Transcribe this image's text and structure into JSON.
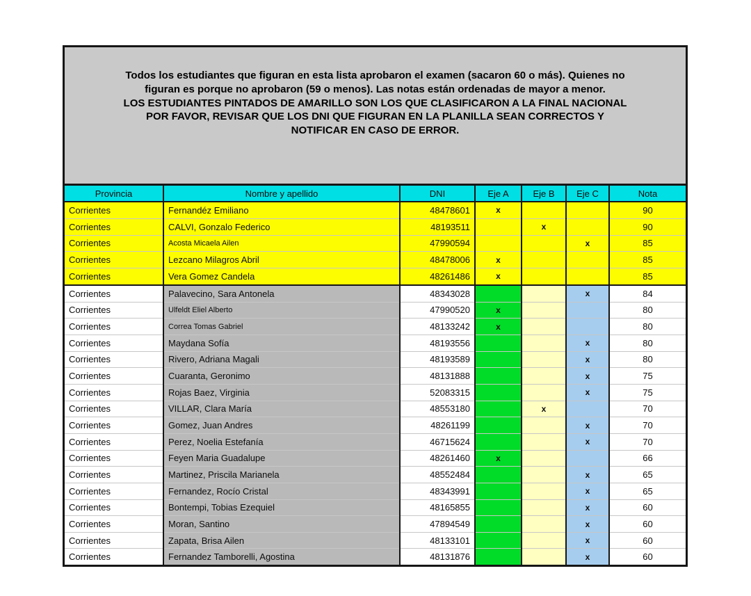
{
  "colors": {
    "notice_bg": "#c9c9c9",
    "header_bg": "#00dfe4",
    "highlight_yellow": "#fdfd00",
    "name_col_gray": "#b9b9b9",
    "eje_a_green": "#00dc28",
    "eje_b_cream": "#ffffc2",
    "eje_c_blue": "#a6cdee",
    "border_black": "#161616"
  },
  "notice": {
    "para1": "Todos los estudiantes que figuran en esta lista aprobaron el examen (sacaron 60 o más). Quienes no figuran es porque no aprobaron (59 o menos). Las notas están ordenadas de mayor a menor.",
    "para2": "LOS ESTUDIANTES PINTADOS DE AMARILLO SON LOS QUE CLASIFICARON A LA FINAL NACIONAL",
    "para3": "POR FAVOR, REVISAR QUE LOS DNI QUE FIGURAN EN LA PLANILLA SEAN CORRECTOS Y NOTIFICAR EN CASO DE ERROR."
  },
  "table": {
    "headers": [
      "Provincia",
      "Nombre y apellido",
      "DNI",
      "Eje A",
      "Eje B",
      "Eje C",
      "Nota"
    ],
    "rows": [
      {
        "provincia": "Corrientes",
        "nombre": "Fernandéz Emiliano",
        "dni": "48478601",
        "eje_a": "x",
        "eje_b": "",
        "eje_c": "",
        "nota": "90",
        "highlight": true,
        "small_name": false
      },
      {
        "provincia": "Corrientes",
        "nombre": "CALVI, Gonzalo Federico",
        "dni": "48193511",
        "eje_a": "",
        "eje_b": "x",
        "eje_c": "",
        "nota": "90",
        "highlight": true,
        "small_name": false
      },
      {
        "provincia": "Corrientes",
        "nombre": "Acosta Micaela Ailen",
        "dni": "47990594",
        "eje_a": "",
        "eje_b": "",
        "eje_c": "x",
        "nota": "85",
        "highlight": true,
        "small_name": true
      },
      {
        "provincia": "Corrientes",
        "nombre": "Lezcano Milagros Abril",
        "dni": "48478006",
        "eje_a": "x",
        "eje_b": "",
        "eje_c": "",
        "nota": "85",
        "highlight": true,
        "small_name": false
      },
      {
        "provincia": "Corrientes",
        "nombre": "Vera Gomez Candela",
        "dni": "48261486",
        "eje_a": "x",
        "eje_b": "",
        "eje_c": "",
        "nota": "85",
        "highlight": true,
        "small_name": false
      },
      {
        "provincia": "Corrientes",
        "nombre": "Palavecino, Sara Antonela",
        "dni": "48343028",
        "eje_a": "",
        "eje_b": "",
        "eje_c": "x",
        "nota": "84",
        "highlight": false,
        "small_name": false
      },
      {
        "provincia": "Corrientes",
        "nombre": "Ulfeldt Eliel Alberto",
        "dni": "47990520",
        "eje_a": "x",
        "eje_b": "",
        "eje_c": "",
        "nota": "80",
        "highlight": false,
        "small_name": true
      },
      {
        "provincia": "Corrientes",
        "nombre": "Correa Tomas Gabriel",
        "dni": "48133242",
        "eje_a": "x",
        "eje_b": "",
        "eje_c": "",
        "nota": "80",
        "highlight": false,
        "small_name": true
      },
      {
        "provincia": "Corrientes",
        "nombre": "Maydana Sofía",
        "dni": "48193556",
        "eje_a": "",
        "eje_b": "",
        "eje_c": "x",
        "nota": "80",
        "highlight": false,
        "small_name": false
      },
      {
        "provincia": "Corrientes",
        "nombre": "Rivero, Adriana Magali",
        "dni": "48193589",
        "eje_a": "",
        "eje_b": "",
        "eje_c": "x",
        "nota": "80",
        "highlight": false,
        "small_name": false
      },
      {
        "provincia": "Corrientes",
        "nombre": "Cuaranta, Geronimo",
        "dni": "48131888",
        "eje_a": "",
        "eje_b": "",
        "eje_c": "x",
        "nota": "75",
        "highlight": false,
        "small_name": false
      },
      {
        "provincia": "Corrientes",
        "nombre": "Rojas Baez, Virginia",
        "dni": "52083315",
        "eje_a": "",
        "eje_b": "",
        "eje_c": "x",
        "nota": "75",
        "highlight": false,
        "small_name": false
      },
      {
        "provincia": "Corrientes",
        "nombre": "VILLAR, Clara María",
        "dni": "48553180",
        "eje_a": "",
        "eje_b": "x",
        "eje_c": "",
        "nota": "70",
        "highlight": false,
        "small_name": false
      },
      {
        "provincia": "Corrientes",
        "nombre": "Gomez, Juan Andres",
        "dni": "48261199",
        "eje_a": "",
        "eje_b": "",
        "eje_c": "x",
        "nota": "70",
        "highlight": false,
        "small_name": false
      },
      {
        "provincia": "Corrientes",
        "nombre": "Perez, Noelia Estefanía",
        "dni": "46715624",
        "eje_a": "",
        "eje_b": "",
        "eje_c": "x",
        "nota": "70",
        "highlight": false,
        "small_name": false
      },
      {
        "provincia": "Corrientes",
        "nombre": "Feyen Maria Guadalupe",
        "dni": "48261460",
        "eje_a": "x",
        "eje_b": "",
        "eje_c": "",
        "nota": "66",
        "highlight": false,
        "small_name": false
      },
      {
        "provincia": "Corrientes",
        "nombre": "Martinez, Priscila Marianela",
        "dni": "48552484",
        "eje_a": "",
        "eje_b": "",
        "eje_c": "x",
        "nota": "65",
        "highlight": false,
        "small_name": false
      },
      {
        "provincia": "Corrientes",
        "nombre": "Fernandez, Rocío Cristal",
        "dni": "48343991",
        "eje_a": "",
        "eje_b": "",
        "eje_c": "x",
        "nota": "65",
        "highlight": false,
        "small_name": false
      },
      {
        "provincia": "Corrientes",
        "nombre": "Bontempi, Tobias Ezequiel",
        "dni": "48165855",
        "eje_a": "",
        "eje_b": "",
        "eje_c": "x",
        "nota": "60",
        "highlight": false,
        "small_name": false
      },
      {
        "provincia": "Corrientes",
        "nombre": "Moran, Santino",
        "dni": "47894549",
        "eje_a": "",
        "eje_b": "",
        "eje_c": "x",
        "nota": "60",
        "highlight": false,
        "small_name": false
      },
      {
        "provincia": "Corrientes",
        "nombre": "Zapata, Brisa Ailen",
        "dni": "48133101",
        "eje_a": "",
        "eje_b": "",
        "eje_c": "x",
        "nota": "60",
        "highlight": false,
        "small_name": false
      },
      {
        "provincia": "Corrientes",
        "nombre": "Fernandez Tamborelli, Agostina",
        "dni": "48131876",
        "eje_a": "",
        "eje_b": "",
        "eje_c": "x",
        "nota": "60",
        "highlight": false,
        "small_name": false
      }
    ]
  }
}
